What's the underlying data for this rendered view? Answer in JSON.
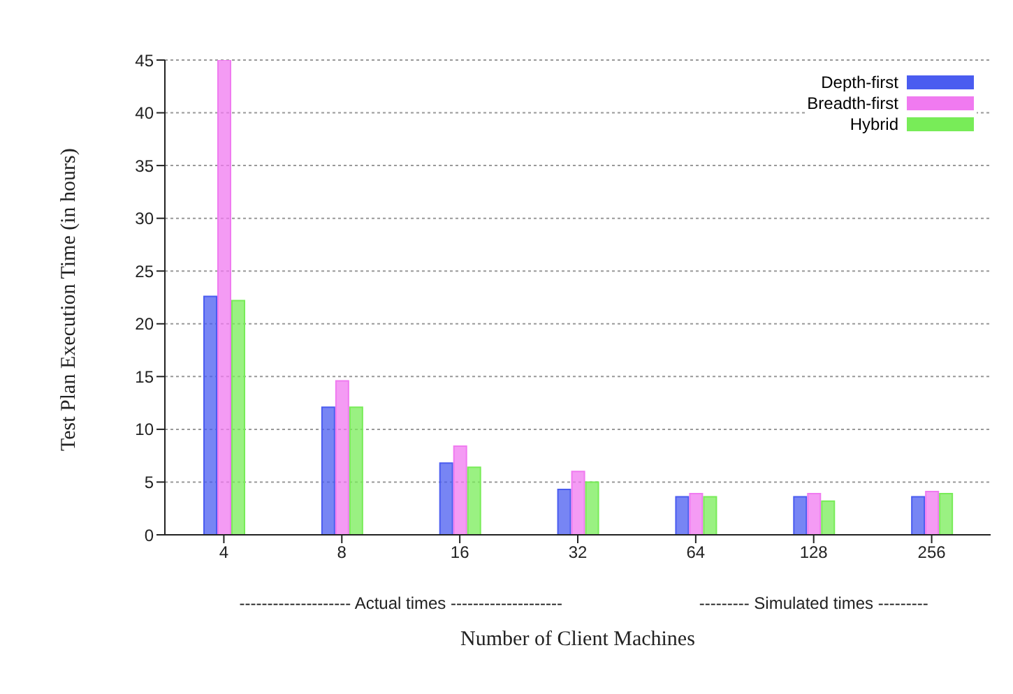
{
  "chart_data": {
    "type": "bar",
    "xlabel": "Number of Client Machines",
    "ylabel": "Test Plan Execution Time (in hours)",
    "categories": [
      "4",
      "8",
      "16",
      "32",
      "64",
      "128",
      "256"
    ],
    "series": [
      {
        "name": "Depth-first",
        "color": "#4a5cf0",
        "values": [
          22.6,
          12.1,
          6.8,
          4.3,
          3.6,
          3.6,
          3.6
        ]
      },
      {
        "name": "Breadth-first",
        "color": "#f07af0",
        "values": [
          45,
          14.6,
          8.4,
          6.0,
          3.9,
          3.9,
          4.1
        ]
      },
      {
        "name": "Hybrid",
        "color": "#78ec58",
        "values": [
          22.2,
          12.1,
          6.4,
          5.0,
          3.6,
          3.2,
          3.9
        ]
      }
    ],
    "ylim": [
      0,
      45
    ],
    "yticks": [
      0,
      5,
      10,
      15,
      20,
      25,
      30,
      35,
      40,
      45
    ],
    "grid": "y",
    "legend": "top right",
    "annotations": [
      "-------------------- Actual times --------------------",
      "--------- Simulated times ---------"
    ]
  }
}
